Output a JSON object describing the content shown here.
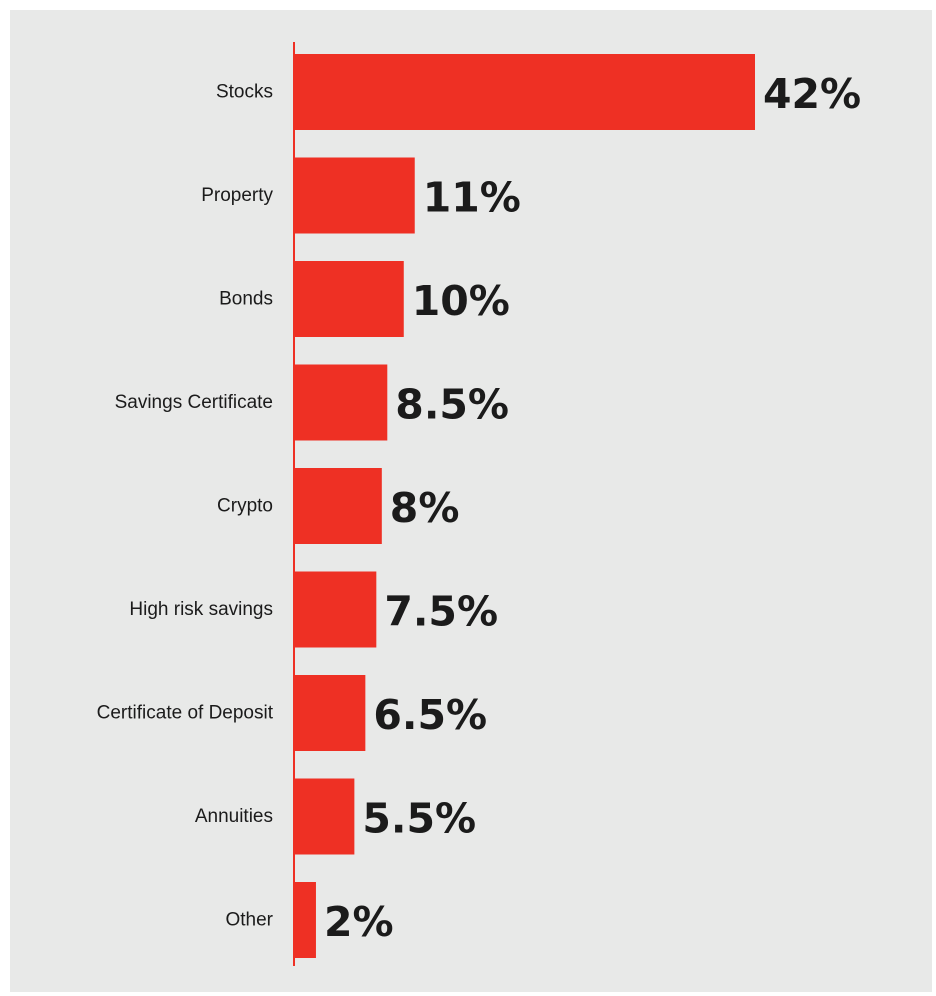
{
  "chart_data": {
    "type": "bar",
    "orientation": "horizontal",
    "categories": [
      "Stocks",
      "Property",
      "Bonds",
      "Savings Certificate",
      "Crypto",
      "High risk savings",
      "Certificate of Deposit",
      "Annuities",
      "Other"
    ],
    "values": [
      42,
      11,
      10,
      8.5,
      8,
      7.5,
      6.5,
      5.5,
      2
    ],
    "value_labels": [
      "42%",
      "11%",
      "10%",
      "8.5%",
      "8%",
      "7.5%",
      "6.5%",
      "5.5%",
      "2%"
    ],
    "title": "",
    "xlabel": "",
    "ylabel": "",
    "xlim": [
      0,
      42
    ],
    "grid": false,
    "legend": "none",
    "colors": {
      "bar": "#ee3024",
      "axis": "#ee3024",
      "background": "#e8e9e8",
      "text": "#1b1b1b"
    }
  }
}
